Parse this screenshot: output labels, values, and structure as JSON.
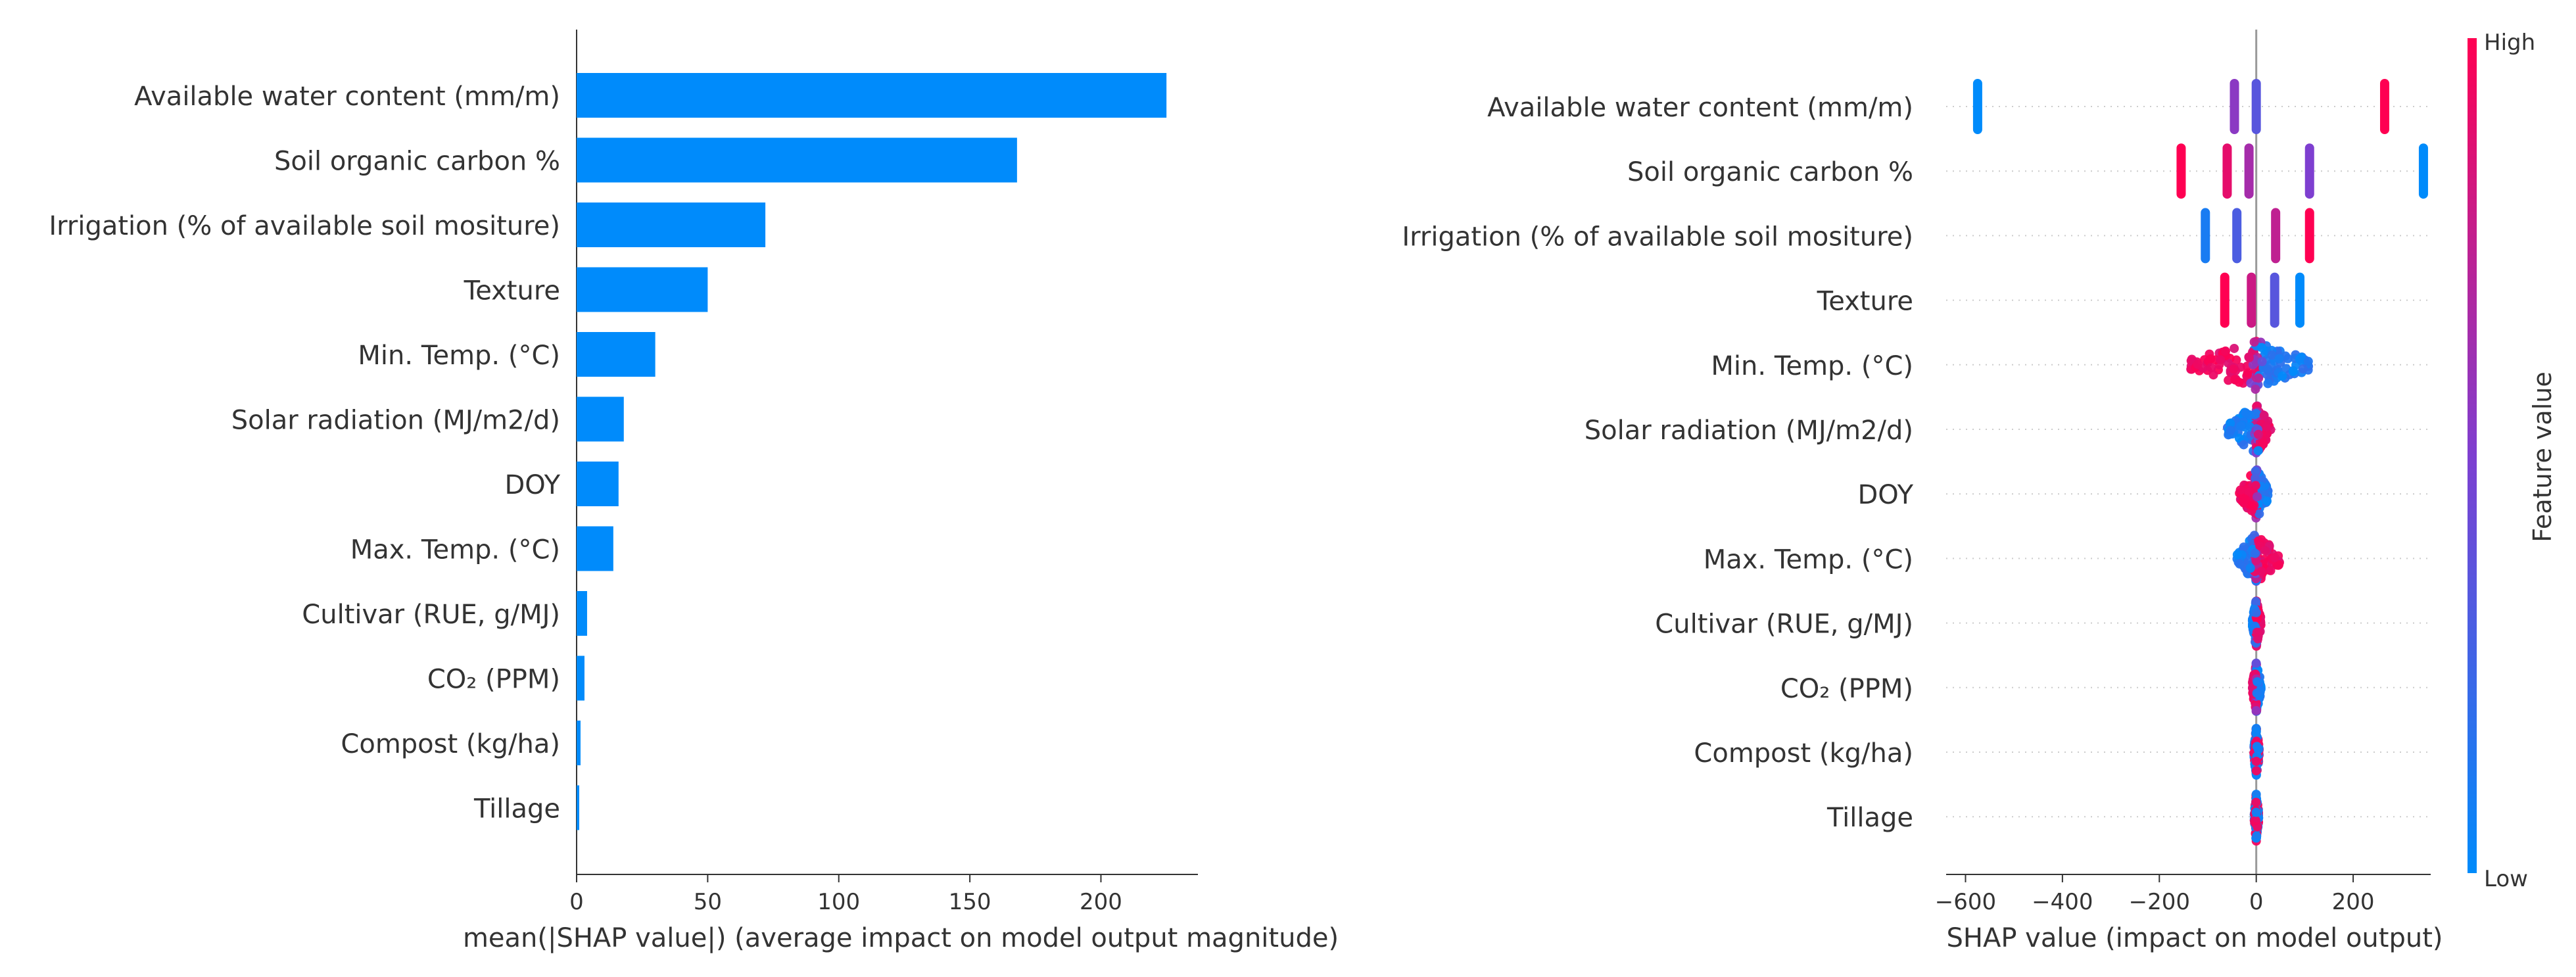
{
  "colors": {
    "bar": "#008bfb",
    "low": "#008bfb",
    "high": "#ff0052",
    "axis": "#333333",
    "grid_dots": "#cccccc"
  },
  "chart_data": [
    {
      "type": "bar",
      "orientation": "horizontal",
      "categories": [
        "Available water content (mm/m)",
        "Soil organic carbon %",
        "Irrigation (% of available soil mositure)",
        "Texture",
        "Min. Temp. (°C)",
        "Solar radiation (MJ/m2/d)",
        "DOY",
        "Max. Temp. (°C)",
        "Cultivar (RUE, g/MJ)",
        "CO₂ (PPM)",
        "Compost (kg/ha)",
        "Tillage"
      ],
      "values": [
        225,
        168,
        72,
        50,
        30,
        18,
        16,
        14,
        4,
        3,
        1.5,
        1
      ],
      "xlabel": "mean(|SHAP value|) (average impact on model output magnitude)",
      "xlim": [
        0,
        237
      ],
      "xticks": [
        0,
        50,
        100,
        150,
        200
      ]
    },
    {
      "type": "scatter",
      "subtype": "beeswarm",
      "categories": [
        "Available water content (mm/m)",
        "Soil organic carbon %",
        "Irrigation (% of available soil mositure)",
        "Texture",
        "Min. Temp. (°C)",
        "Solar radiation (MJ/m2/d)",
        "DOY",
        "Max. Temp. (°C)",
        "Cultivar (RUE, g/MJ)",
        "CO₂ (PPM)",
        "Compost (kg/ha)",
        "Tillage"
      ],
      "clusters": [
        [
          {
            "x": -575,
            "v": 0.0
          },
          {
            "x": -45,
            "v": 0.55
          },
          {
            "x": 0,
            "v": 0.35
          },
          {
            "x": 265,
            "v": 1.0
          }
        ],
        [
          {
            "x": -155,
            "v": 1.0
          },
          {
            "x": -60,
            "v": 0.9
          },
          {
            "x": -15,
            "v": 0.65
          },
          {
            "x": 110,
            "v": 0.5
          },
          {
            "x": 345,
            "v": 0.0
          }
        ],
        [
          {
            "x": -105,
            "v": 0.1
          },
          {
            "x": -40,
            "v": 0.3
          },
          {
            "x": 40,
            "v": 0.75
          },
          {
            "x": 110,
            "v": 1.0
          }
        ],
        [
          {
            "x": -65,
            "v": 1.0
          },
          {
            "x": -10,
            "v": 0.8
          },
          {
            "x": 38,
            "v": 0.35
          },
          {
            "x": 90,
            "v": 0.0
          }
        ]
      ],
      "spreads": [
        {
          "row": 4,
          "min": -135,
          "max": 110,
          "low_side": "positive",
          "high_side": "negative"
        },
        {
          "row": 5,
          "min": -60,
          "max": 30,
          "low_side": "negative",
          "high_side": "positive"
        },
        {
          "row": 6,
          "min": -35,
          "max": 25,
          "low_side": "positive",
          "high_side": "negative"
        },
        {
          "row": 7,
          "min": -40,
          "max": 50,
          "low_side": "negative",
          "high_side": "positive"
        },
        {
          "row": 8,
          "min": -8,
          "max": 10,
          "low_side": "negative",
          "high_side": "positive"
        },
        {
          "row": 9,
          "min": -8,
          "max": 10,
          "low_side": "positive",
          "high_side": "negative"
        },
        {
          "row": 10,
          "min": -5,
          "max": 6,
          "low_side": "mixed",
          "high_side": "mixed"
        },
        {
          "row": 11,
          "min": -4,
          "max": 5,
          "low_side": "mixed",
          "high_side": "mixed"
        }
      ],
      "xlabel": "SHAP value (impact on model output)",
      "xlim": [
        -640,
        360
      ],
      "xticks": [
        -600,
        -400,
        -200,
        0,
        200
      ],
      "xtick_labels": [
        "−600",
        "−400",
        "−200",
        "0",
        "200"
      ],
      "colorbar": {
        "label": "Feature value",
        "high": "High",
        "low": "Low"
      }
    }
  ]
}
